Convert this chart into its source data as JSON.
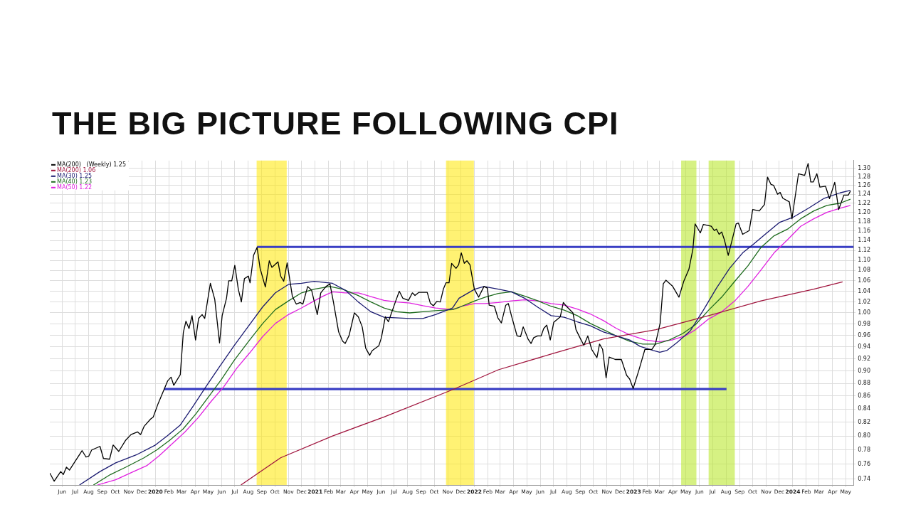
{
  "chart_data": {
    "type": "line",
    "title": "THE BIG PICTURE FOLLOWING CPI",
    "log": "y",
    "grid": true,
    "legend": "top left",
    "xlim": [
      "2019-05-04",
      "2024-05-19"
    ],
    "xticks": [
      {
        "value": "2019-06-01",
        "label": "Jun"
      },
      {
        "value": "2019-07-01",
        "label": "Jul"
      },
      {
        "value": "2019-08-01",
        "label": "Aug"
      },
      {
        "value": "2019-09-01",
        "label": "Sep"
      },
      {
        "value": "2019-10-01",
        "label": "Oct"
      },
      {
        "value": "2019-11-01",
        "label": "Nov"
      },
      {
        "value": "2019-12-01",
        "label": "Dec"
      },
      {
        "value": "2020-01-01",
        "label": "2020"
      },
      {
        "value": "2020-02-01",
        "label": "Feb"
      },
      {
        "value": "2020-03-01",
        "label": "Mar"
      },
      {
        "value": "2020-04-01",
        "label": "Apr"
      },
      {
        "value": "2020-05-01",
        "label": "May"
      },
      {
        "value": "2020-06-01",
        "label": "Jun"
      },
      {
        "value": "2020-07-01",
        "label": "Jul"
      },
      {
        "value": "2020-08-01",
        "label": "Aug"
      },
      {
        "value": "2020-09-01",
        "label": "Sep"
      },
      {
        "value": "2020-10-01",
        "label": "Oct"
      },
      {
        "value": "2020-11-01",
        "label": "Nov"
      },
      {
        "value": "2020-12-01",
        "label": "Dec"
      },
      {
        "value": "2021-01-01",
        "label": "2021"
      },
      {
        "value": "2021-02-01",
        "label": "Feb"
      },
      {
        "value": "2021-03-01",
        "label": "Mar"
      },
      {
        "value": "2021-04-01",
        "label": "Apr"
      },
      {
        "value": "2021-05-01",
        "label": "May"
      },
      {
        "value": "2021-06-01",
        "label": "Jun"
      },
      {
        "value": "2021-07-01",
        "label": "Jul"
      },
      {
        "value": "2021-08-01",
        "label": "Aug"
      },
      {
        "value": "2021-09-01",
        "label": "Sep"
      },
      {
        "value": "2021-10-01",
        "label": "Oct"
      },
      {
        "value": "2021-11-01",
        "label": "Nov"
      },
      {
        "value": "2021-12-01",
        "label": "Dec"
      },
      {
        "value": "2022-01-01",
        "label": "2022"
      },
      {
        "value": "2022-02-01",
        "label": "Feb"
      },
      {
        "value": "2022-03-01",
        "label": "Mar"
      },
      {
        "value": "2022-04-01",
        "label": "Apr"
      },
      {
        "value": "2022-05-01",
        "label": "May"
      },
      {
        "value": "2022-06-01",
        "label": "Jun"
      },
      {
        "value": "2022-07-01",
        "label": "Jul"
      },
      {
        "value": "2022-08-01",
        "label": "Aug"
      },
      {
        "value": "2022-09-01",
        "label": "Sep"
      },
      {
        "value": "2022-10-01",
        "label": "Oct"
      },
      {
        "value": "2022-11-01",
        "label": "Nov"
      },
      {
        "value": "2022-12-01",
        "label": "Dec"
      },
      {
        "value": "2023-01-01",
        "label": "2023"
      },
      {
        "value": "2023-02-01",
        "label": "Feb"
      },
      {
        "value": "2023-03-01",
        "label": "Mar"
      },
      {
        "value": "2023-04-01",
        "label": "Apr"
      },
      {
        "value": "2023-05-01",
        "label": "May"
      },
      {
        "value": "2023-06-01",
        "label": "Jun"
      },
      {
        "value": "2023-07-01",
        "label": "Jul"
      },
      {
        "value": "2023-08-01",
        "label": "Aug"
      },
      {
        "value": "2023-09-01",
        "label": "Sep"
      },
      {
        "value": "2023-10-01",
        "label": "Oct"
      },
      {
        "value": "2023-11-01",
        "label": "Nov"
      },
      {
        "value": "2023-12-01",
        "label": "Dec"
      },
      {
        "value": "2024-01-01",
        "label": "2024"
      },
      {
        "value": "2024-02-01",
        "label": "Feb"
      },
      {
        "value": "2024-03-01",
        "label": "Mar"
      },
      {
        "value": "2024-04-01",
        "label": "Apr"
      },
      {
        "value": "2024-05-01",
        "label": "May"
      }
    ],
    "ylim": [
      0.732,
      1.318
    ],
    "yticks": [
      0.74,
      0.76,
      0.78,
      {
        "value": 0.8,
        "label": "0.80"
      },
      0.82,
      0.84,
      0.86,
      0.88,
      {
        "value": 0.9,
        "label": "0.90"
      },
      0.92,
      0.94,
      0.96,
      0.98,
      {
        "value": 1.0,
        "label": "1.00"
      },
      1.02,
      1.04,
      1.06,
      1.08,
      {
        "value": 1.1,
        "label": "1.10"
      },
      1.12,
      1.14,
      1.16,
      1.18,
      {
        "value": 1.2,
        "label": "1.20"
      },
      1.22,
      1.24,
      1.26,
      1.28,
      {
        "value": 1.3,
        "label": "1.30"
      }
    ],
    "bands": [
      {
        "axis": "x",
        "from": "2020-08-20",
        "to": "2020-10-28",
        "color": "#ffe800"
      },
      {
        "axis": "x",
        "from": "2021-10-28",
        "to": "2021-12-31",
        "color": "#ffe800"
      },
      {
        "axis": "x",
        "from": "2023-04-20",
        "to": "2023-05-25",
        "color": "#b5e61d"
      },
      {
        "axis": "x",
        "from": "2023-06-22",
        "to": "2023-08-21",
        "color": "#b5e61d"
      }
    ],
    "series": [
      {
        "name": "MA(200)   (Weekly) 1.25",
        "color": "#000000",
        "x": [
          "2019-05-04",
          "2019-05-14",
          "2019-05-29",
          "2019-06-04",
          "2019-06-11",
          "2019-06-18",
          "2019-07-17",
          "2019-07-26",
          "2019-08-01",
          "2019-08-08",
          "2019-08-27",
          "2019-09-04",
          "2019-09-18",
          "2019-09-26",
          "2019-10-09",
          "2019-10-25",
          "2019-11-06",
          "2019-11-21",
          "2019-11-28",
          "2019-12-06",
          "2019-12-21",
          "2019-12-27",
          "2020-01-07",
          "2020-01-29",
          "2020-02-06",
          "2020-02-12",
          "2020-02-27",
          "2020-03-05",
          "2020-03-11",
          "2020-03-18",
          "2020-03-25",
          "2020-04-02",
          "2020-04-09",
          "2020-04-17",
          "2020-04-23",
          "2020-05-06",
          "2020-05-16",
          "2020-05-27",
          "2020-06-02",
          "2020-06-12",
          "2020-06-17",
          "2020-06-24",
          "2020-07-01",
          "2020-07-09",
          "2020-07-16",
          "2020-07-23",
          "2020-08-01",
          "2020-08-05",
          "2020-08-13",
          "2020-08-21",
          "2020-08-28",
          "2020-09-09",
          "2020-09-18",
          "2020-09-24",
          "2020-10-08",
          "2020-10-14",
          "2020-10-21",
          "2020-10-29",
          "2020-11-10",
          "2020-11-19",
          "2020-11-28",
          "2020-12-04",
          "2020-12-15",
          "2020-12-24",
          "2021-01-06",
          "2021-01-14",
          "2021-01-26",
          "2021-02-04",
          "2021-02-12",
          "2021-02-24",
          "2021-03-05",
          "2021-03-11",
          "2021-03-20",
          "2021-04-01",
          "2021-04-10",
          "2021-04-19",
          "2021-04-27",
          "2021-05-06",
          "2021-05-12",
          "2021-05-27",
          "2021-06-02",
          "2021-06-11",
          "2021-06-18",
          "2021-07-04",
          "2021-07-13",
          "2021-07-21",
          "2021-08-03",
          "2021-08-12",
          "2021-08-18",
          "2021-08-27",
          "2021-09-15",
          "2021-09-22",
          "2021-09-29",
          "2021-10-07",
          "2021-10-15",
          "2021-10-22",
          "2021-10-28",
          "2021-11-04",
          "2021-11-10",
          "2021-11-20",
          "2021-11-26",
          "2021-12-02",
          "2021-12-09",
          "2021-12-15",
          "2021-12-22",
          "2022-01-01",
          "2022-01-11",
          "2022-01-23",
          "2022-01-31",
          "2022-02-04",
          "2022-02-16",
          "2022-02-24",
          "2022-03-04",
          "2022-03-14",
          "2022-03-20",
          "2022-03-27",
          "2022-04-09",
          "2022-04-17",
          "2022-04-23",
          "2022-05-04",
          "2022-05-11",
          "2022-05-17",
          "2022-05-26",
          "2022-06-03",
          "2022-06-09",
          "2022-06-16",
          "2022-06-24",
          "2022-07-02",
          "2022-07-17",
          "2022-07-24",
          "2022-07-30",
          "2022-08-15",
          "2022-08-22",
          "2022-08-31",
          "2022-09-09",
          "2022-09-18",
          "2022-09-27",
          "2022-10-09",
          "2022-10-15",
          "2022-10-22",
          "2022-10-30",
          "2022-11-06",
          "2022-11-20",
          "2022-12-04",
          "2022-12-16",
          "2022-12-23",
          "2022-12-31",
          "2023-01-13",
          "2023-01-27",
          "2023-02-12",
          "2023-02-20",
          "2023-03-03",
          "2023-03-10",
          "2023-03-16",
          "2023-03-31",
          "2023-04-15",
          "2023-04-26",
          "2023-05-08",
          "2023-05-17",
          "2023-05-22",
          "2023-06-03",
          "2023-06-10",
          "2023-06-28",
          "2023-07-05",
          "2023-07-10",
          "2023-07-16",
          "2023-07-22",
          "2023-07-28",
          "2023-08-06",
          "2023-08-24",
          "2023-08-29",
          "2023-09-08",
          "2023-09-23",
          "2023-10-01",
          "2023-10-16",
          "2023-10-28",
          "2023-11-04",
          "2023-11-12",
          "2023-11-18",
          "2023-11-27",
          "2023-12-03",
          "2023-12-09",
          "2023-12-24",
          "2023-12-30",
          "2024-01-14",
          "2024-01-28",
          "2024-02-05",
          "2024-02-11",
          "2024-02-17",
          "2024-02-25",
          "2024-03-03",
          "2024-03-16",
          "2024-03-25",
          "2024-04-06",
          "2024-04-15",
          "2024-04-27",
          "2024-05-07",
          "2024-05-12"
        ],
        "values": [
          0.748,
          0.737,
          0.75,
          0.746,
          0.756,
          0.752,
          0.779,
          0.77,
          0.771,
          0.78,
          0.785,
          0.768,
          0.767,
          0.787,
          0.778,
          0.794,
          0.802,
          0.806,
          0.802,
          0.814,
          0.825,
          0.828,
          0.848,
          0.884,
          0.89,
          0.877,
          0.894,
          0.965,
          0.985,
          0.972,
          0.995,
          0.952,
          0.99,
          0.997,
          0.99,
          1.055,
          1.025,
          0.947,
          0.995,
          1.027,
          1.06,
          1.06,
          1.09,
          1.044,
          1.02,
          1.064,
          1.069,
          1.056,
          1.11,
          1.126,
          1.084,
          1.048,
          1.099,
          1.086,
          1.097,
          1.069,
          1.059,
          1.095,
          1.03,
          1.016,
          1.019,
          1.016,
          1.049,
          1.042,
          0.997,
          1.037,
          1.049,
          1.054,
          1.02,
          0.966,
          0.95,
          0.946,
          0.96,
          1.0,
          0.993,
          0.975,
          0.938,
          0.926,
          0.934,
          0.942,
          0.956,
          0.993,
          0.984,
          1.02,
          1.04,
          1.027,
          1.023,
          1.037,
          1.032,
          1.038,
          1.038,
          1.018,
          1.013,
          1.021,
          1.02,
          1.044,
          1.056,
          1.056,
          1.094,
          1.084,
          1.091,
          1.115,
          1.094,
          1.099,
          1.091,
          1.044,
          1.029,
          1.049,
          1.046,
          1.014,
          1.012,
          0.991,
          0.982,
          1.014,
          1.017,
          0.995,
          0.959,
          0.958,
          0.975,
          0.954,
          0.946,
          0.956,
          0.959,
          0.959,
          0.972,
          0.978,
          0.952,
          0.983,
          0.993,
          1.019,
          1.013,
          1.0,
          0.97,
          0.956,
          0.943,
          0.959,
          0.936,
          0.922,
          0.945,
          0.936,
          0.889,
          0.923,
          0.919,
          0.919,
          0.893,
          0.887,
          0.872,
          0.901,
          0.936,
          0.936,
          0.945,
          0.982,
          1.054,
          1.061,
          1.05,
          1.029,
          1.059,
          1.083,
          1.123,
          1.175,
          1.156,
          1.174,
          1.17,
          1.161,
          1.164,
          1.153,
          1.158,
          1.142,
          1.11,
          1.175,
          1.177,
          1.153,
          1.161,
          1.206,
          1.203,
          1.217,
          1.279,
          1.262,
          1.26,
          1.24,
          1.244,
          1.231,
          1.223,
          1.186,
          1.287,
          1.283,
          1.311,
          1.268,
          1.268,
          1.287,
          1.256,
          1.258,
          1.23,
          1.267,
          1.206,
          1.238,
          1.238,
          1.247
        ]
      },
      {
        "name": "MA(200) 1.06",
        "color": "#a0153e",
        "x": [
          "2020-07-15",
          "2020-10-14",
          "2021-02-10",
          "2021-06-08",
          "2021-11-12",
          "2022-02-25",
          "2022-06-26",
          "2022-10-24",
          "2023-02-21",
          "2023-06-22",
          "2023-10-20",
          "2024-02-18",
          "2024-04-24"
        ],
        "values": [
          0.732,
          0.769,
          0.8,
          0.828,
          0.87,
          0.902,
          0.928,
          0.954,
          0.97,
          0.995,
          1.022,
          1.044,
          1.058
        ]
      },
      {
        "name": "MA(30) 1.25",
        "color": "#1a1a70",
        "x": [
          "2019-07-11",
          "2019-08-27",
          "2019-10-02",
          "2019-11-18",
          "2020-01-01",
          "2020-01-28",
          "2020-02-27",
          "2020-03-27",
          "2020-04-26",
          "2020-05-25",
          "2020-06-30",
          "2020-08-04",
          "2020-09-03",
          "2020-10-02",
          "2020-11-01",
          "2020-12-01",
          "2020-12-30",
          "2021-02-10",
          "2021-03-11",
          "2021-04-10",
          "2021-05-09",
          "2021-06-08",
          "2021-08-06",
          "2021-09-05",
          "2021-10-04",
          "2021-11-12",
          "2021-11-27",
          "2022-01-02",
          "2022-01-23",
          "2022-02-25",
          "2022-03-27",
          "2022-04-26",
          "2022-05-27",
          "2022-06-26",
          "2022-07-26",
          "2022-08-25",
          "2022-09-24",
          "2022-10-24",
          "2022-11-23",
          "2022-12-23",
          "2023-01-16",
          "2023-02-15",
          "2023-03-02",
          "2023-03-18",
          "2023-04-11",
          "2023-05-11",
          "2023-06-10",
          "2023-07-10",
          "2023-08-09",
          "2023-09-08",
          "2023-10-02",
          "2023-11-01",
          "2023-12-01",
          "2024-01-01",
          "2024-02-06",
          "2024-03-13",
          "2024-04-18",
          "2024-05-12"
        ],
        "values": [
          0.732,
          0.75,
          0.762,
          0.773,
          0.787,
          0.8,
          0.816,
          0.844,
          0.875,
          0.905,
          0.943,
          0.979,
          1.011,
          1.037,
          1.053,
          1.055,
          1.059,
          1.055,
          1.042,
          1.02,
          1.002,
          0.992,
          0.99,
          0.99,
          0.997,
          1.009,
          1.027,
          1.044,
          1.049,
          1.044,
          1.039,
          1.027,
          1.01,
          0.995,
          0.992,
          0.984,
          0.977,
          0.966,
          0.959,
          0.952,
          0.941,
          0.934,
          0.931,
          0.934,
          0.948,
          0.968,
          1.005,
          1.046,
          1.084,
          1.115,
          1.132,
          1.155,
          1.178,
          1.189,
          1.209,
          1.231,
          1.243,
          1.249
        ]
      },
      {
        "name": "MA(40) 1.23",
        "color": "#1e6b1e",
        "x": [
          "2019-08-12",
          "2019-09-20",
          "2019-10-25",
          "2019-12-06",
          "2020-01-04",
          "2020-02-03",
          "2020-03-04",
          "2020-04-02",
          "2020-05-02",
          "2020-05-31",
          "2020-06-30",
          "2020-08-04",
          "2020-09-03",
          "2020-10-02",
          "2020-11-01",
          "2020-12-01",
          "2020-12-30",
          "2021-02-04",
          "2021-03-05",
          "2021-04-10",
          "2021-05-09",
          "2021-06-08",
          "2021-07-07",
          "2021-08-06",
          "2021-09-05",
          "2021-10-04",
          "2021-11-12",
          "2021-11-27",
          "2022-01-02",
          "2022-01-26",
          "2022-02-25",
          "2022-03-27",
          "2022-04-26",
          "2022-05-27",
          "2022-06-26",
          "2022-07-26",
          "2022-08-25",
          "2022-09-24",
          "2022-10-24",
          "2022-11-23",
          "2022-12-23",
          "2023-01-22",
          "2023-02-21",
          "2023-03-24",
          "2023-04-23",
          "2023-05-23",
          "2023-06-22",
          "2023-07-22",
          "2023-08-21",
          "2023-09-20",
          "2023-10-20",
          "2023-11-19",
          "2023-12-20",
          "2024-01-19",
          "2024-02-18",
          "2024-03-19",
          "2024-04-18",
          "2024-05-12"
        ],
        "values": [
          0.732,
          0.746,
          0.756,
          0.769,
          0.78,
          0.794,
          0.81,
          0.832,
          0.859,
          0.886,
          0.918,
          0.952,
          0.981,
          1.006,
          1.022,
          1.037,
          1.044,
          1.049,
          1.044,
          1.032,
          1.02,
          1.009,
          1.002,
          1.0,
          1.002,
          1.004,
          1.006,
          1.01,
          1.022,
          1.029,
          1.036,
          1.039,
          1.031,
          1.022,
          1.012,
          1.005,
          0.995,
          0.981,
          0.97,
          0.959,
          0.95,
          0.945,
          0.945,
          0.952,
          0.963,
          0.979,
          1.005,
          1.029,
          1.059,
          1.089,
          1.126,
          1.15,
          1.164,
          1.186,
          1.203,
          1.215,
          1.22,
          1.229
        ]
      },
      {
        "name": "MA(50) 1.22",
        "color": "#e020e0",
        "x": [
          "2019-08-21",
          "2019-10-02",
          "2019-11-12",
          "2019-12-12",
          "2020-01-10",
          "2020-02-09",
          "2020-03-09",
          "2020-04-08",
          "2020-05-08",
          "2020-06-06",
          "2020-07-06",
          "2020-08-04",
          "2020-09-03",
          "2020-10-02",
          "2020-11-01",
          "2020-12-01",
          "2020-12-30",
          "2021-01-17",
          "2021-02-10",
          "2021-03-11",
          "2021-04-10",
          "2021-05-09",
          "2021-06-08",
          "2021-07-07",
          "2021-08-06",
          "2021-09-05",
          "2021-10-04",
          "2021-11-12",
          "2021-12-03",
          "2022-01-02",
          "2022-01-26",
          "2022-02-25",
          "2022-03-27",
          "2022-04-26",
          "2022-05-27",
          "2022-06-26",
          "2022-07-26",
          "2022-08-25",
          "2022-09-24",
          "2022-10-24",
          "2022-11-23",
          "2022-12-23",
          "2023-01-28",
          "2023-02-27",
          "2023-03-30",
          "2023-04-29",
          "2023-05-23",
          "2023-06-22",
          "2023-07-22",
          "2023-08-21",
          "2023-09-20",
          "2023-10-20",
          "2023-11-19",
          "2023-12-20",
          "2024-01-19",
          "2024-02-18",
          "2024-03-19",
          "2024-04-18",
          "2024-05-12"
        ],
        "values": [
          0.732,
          0.739,
          0.75,
          0.758,
          0.772,
          0.789,
          0.806,
          0.827,
          0.852,
          0.875,
          0.905,
          0.93,
          0.958,
          0.981,
          0.997,
          1.009,
          1.022,
          1.03,
          1.039,
          1.037,
          1.037,
          1.03,
          1.023,
          1.02,
          1.018,
          1.013,
          1.009,
          1.006,
          1.012,
          1.017,
          1.017,
          1.019,
          1.022,
          1.024,
          1.022,
          1.017,
          1.014,
          1.007,
          0.998,
          0.986,
          0.972,
          0.961,
          0.952,
          0.949,
          0.952,
          0.959,
          0.97,
          0.989,
          1.002,
          1.022,
          1.049,
          1.081,
          1.115,
          1.142,
          1.17,
          1.186,
          1.2,
          1.209,
          1.215
        ]
      },
      {
        "color": "#3a3fc4",
        "x": [
          "2020-08-21",
          "2024-05-19"
        ],
        "values": [
          1.127,
          1.127
        ]
      },
      {
        "color": "#3a3fc4",
        "x": [
          "2020-01-21",
          "2023-08-02"
        ],
        "values": [
          0.871,
          0.871
        ]
      }
    ]
  }
}
